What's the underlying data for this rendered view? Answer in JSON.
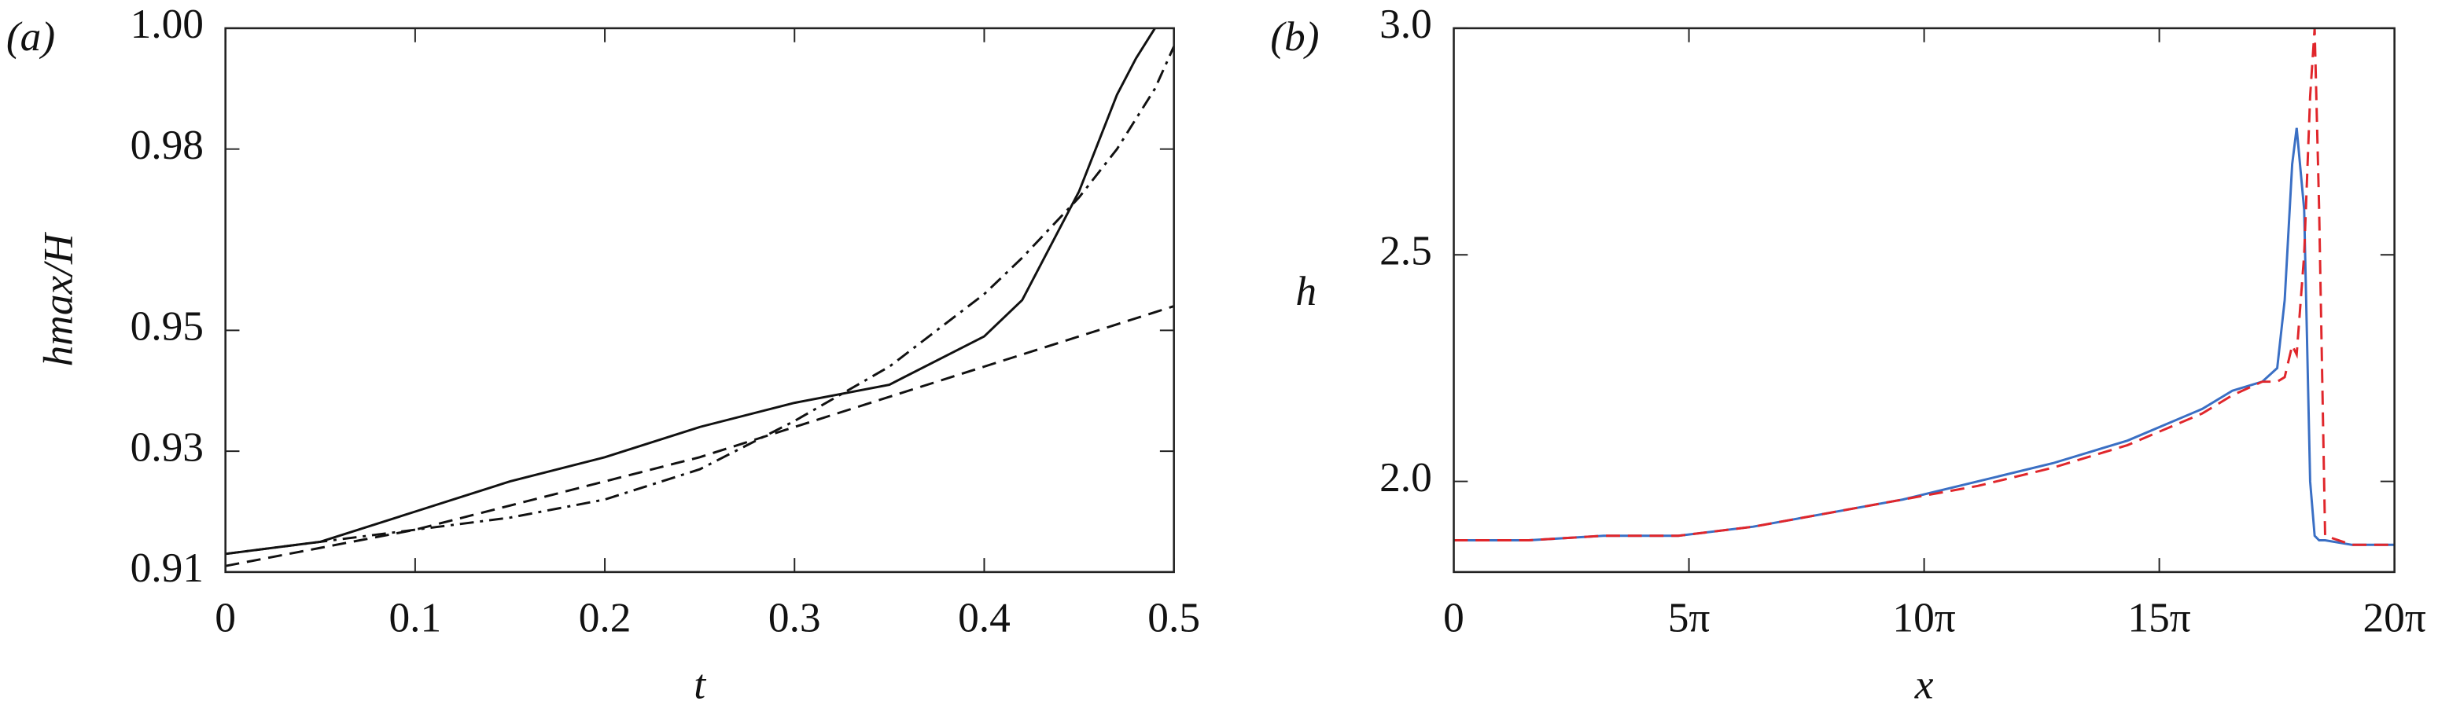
{
  "chart_data": [
    {
      "type": "line",
      "panel_label": "(a)",
      "x_label": "t",
      "y_label": "hmax/H",
      "xlim": [
        0,
        0.5
      ],
      "ylim": [
        0.91,
        1.0
      ],
      "xticks": [
        0,
        0.1,
        0.2,
        0.3,
        0.4,
        0.5
      ],
      "yticks": [
        0.91,
        0.93,
        0.95,
        0.98,
        {
          "value": 1.0,
          "label": "1.00"
        }
      ],
      "x": [
        0,
        0.05,
        0.1,
        0.15,
        0.2,
        0.25,
        0.3,
        0.35,
        0.4,
        0.42,
        0.45,
        0.47,
        0.48,
        0.49,
        0.5
      ],
      "series": [
        {
          "color": "#111111",
          "dash": "solid",
          "values": [
            0.913,
            0.915,
            0.92,
            0.925,
            0.929,
            0.934,
            0.938,
            0.941,
            0.949,
            0.955,
            0.973,
            0.989,
            0.995,
            1.0,
            null
          ]
        },
        {
          "color": "#111111",
          "dash": "dashed",
          "values": [
            0.911,
            0.914,
            0.917,
            0.921,
            0.925,
            0.929,
            0.934,
            0.939,
            0.944,
            0.946,
            0.949,
            0.951,
            0.952,
            0.953,
            0.954
          ]
        },
        {
          "color": "#111111",
          "dash": "dashdot",
          "values": [
            0.913,
            0.915,
            0.917,
            0.919,
            0.922,
            0.927,
            0.935,
            0.944,
            0.956,
            0.962,
            0.972,
            0.98,
            0.985,
            0.99,
            0.997
          ]
        }
      ]
    },
    {
      "type": "line",
      "panel_label": "(b)",
      "x_label": "x",
      "y_label": "h",
      "xlim": [
        0,
        62.832
      ],
      "ylim": [
        1.8,
        3.0
      ],
      "xticks": [
        0,
        {
          "value": 15.708,
          "label": "5π"
        },
        {
          "value": 31.416,
          "label": "10π"
        },
        {
          "value": 47.124,
          "label": "15π"
        },
        {
          "value": 62.832,
          "label": "20π"
        }
      ],
      "yticks": [
        {
          "value": 2.0,
          "label": "2.0"
        },
        2.5,
        {
          "value": 3.0,
          "label": "3.0"
        }
      ],
      "x": [
        0,
        5,
        10,
        15,
        20,
        25,
        30,
        35,
        40,
        45,
        50,
        52,
        54,
        55,
        55.5,
        56,
        56.3,
        56.8,
        57.2,
        57.5,
        57.8,
        58.2,
        60,
        62.8
      ],
      "series": [
        {
          "color": "#3a6fc4",
          "dash": "solid",
          "values": [
            1.87,
            1.87,
            1.88,
            1.88,
            1.9,
            1.93,
            1.96,
            2.0,
            2.04,
            2.09,
            2.16,
            2.2,
            2.22,
            2.25,
            2.4,
            2.7,
            2.78,
            2.6,
            2.0,
            1.88,
            1.87,
            1.87,
            1.86,
            1.86
          ]
        },
        {
          "color": "#e0262b",
          "dash": "dashed",
          "values": [
            1.87,
            1.87,
            1.88,
            1.88,
            1.9,
            1.93,
            1.96,
            1.99,
            2.03,
            2.08,
            2.15,
            2.19,
            2.22,
            2.22,
            2.23,
            2.3,
            2.28,
            2.5,
            2.85,
            3.0,
            2.6,
            1.88,
            1.86,
            1.86
          ]
        }
      ]
    }
  ]
}
